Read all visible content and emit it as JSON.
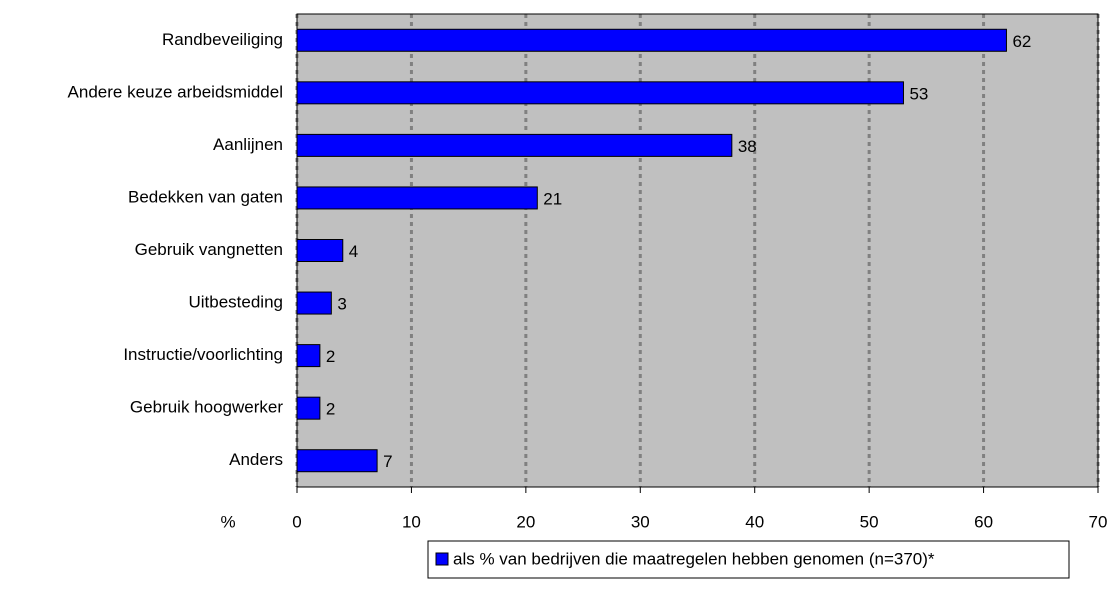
{
  "chart_data": {
    "type": "bar",
    "orientation": "horizontal",
    "categories": [
      "Randbeveiliging",
      "Andere keuze arbeidsmiddel",
      "Aanlijnen",
      "Bedekken van gaten",
      "Gebruik vangnetten",
      "Uitbesteding",
      "Instructie/voorlichting",
      "Gebruik hoogwerker",
      "Anders"
    ],
    "series": [
      {
        "name": "als % van bedrijven die maatregelen hebben genomen (n=370)*",
        "color": "#0000ff",
        "values": [
          62,
          53,
          38,
          21,
          4,
          3,
          2,
          2,
          7
        ]
      }
    ],
    "x_label": "%",
    "xlim": [
      0,
      70
    ],
    "xticks": [
      0,
      10,
      20,
      30,
      40,
      50,
      60,
      70
    ],
    "grid": true,
    "legend": "bottom"
  }
}
